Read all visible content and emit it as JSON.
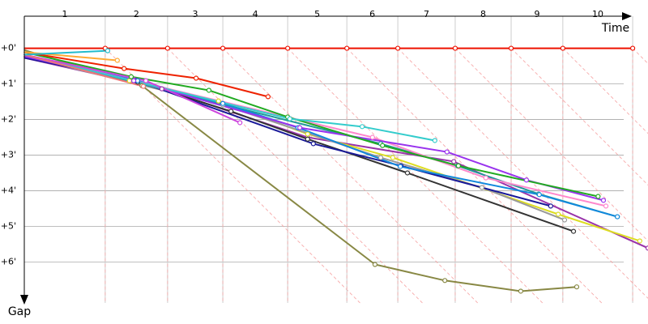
{
  "chart_data": {
    "type": "line",
    "x_label": "Time",
    "y_label": "Gap",
    "laps": [
      "1",
      "2",
      "3",
      "4",
      "5",
      "6",
      "7",
      "8",
      "9",
      "10"
    ],
    "xlim": [
      0,
      17.5
    ],
    "ylim": [
      -0.9,
      7.15
    ],
    "y_inverted": true,
    "grid": true,
    "yticks": [
      {
        "value": 0,
        "label": "+0'"
      },
      {
        "value": 1,
        "label": "+1'"
      },
      {
        "value": 2,
        "label": "+2'"
      },
      {
        "value": 3,
        "label": "+3'"
      },
      {
        "value": 4,
        "label": "+4'"
      },
      {
        "value": 5,
        "label": "+5'"
      },
      {
        "value": 6,
        "label": "+6'"
      }
    ],
    "series": [
      {
        "color": "#ee1100",
        "x": [
          0,
          2.27,
          4.02,
          5.57,
          7.39,
          9.05,
          10.48,
          12.09,
          13.66,
          15.11,
          17.07
        ],
        "y": [
          0,
          0,
          0,
          0,
          0,
          0,
          0,
          0,
          0,
          0,
          0
        ]
      },
      {
        "color": "#888844",
        "x": [
          0,
          3.3,
          9.84,
          11.8,
          13.93,
          15.5
        ],
        "y": [
          0.05,
          1.05,
          6.07,
          6.52,
          6.82,
          6.7
        ]
      },
      {
        "color": "#9933aa",
        "x": [
          0,
          3.86,
          7.95,
          12.05,
          17.5
        ],
        "y": [
          0.27,
          1.14,
          2.5,
          3.18,
          5.61
        ]
      },
      {
        "color": "#dddd22",
        "x": [
          0,
          2.95,
          5.45,
          7.95,
          10.34,
          14.98,
          17.27
        ],
        "y": [
          0.23,
          0.91,
          1.48,
          2.41,
          3.07,
          4.66,
          5.41
        ]
      },
      {
        "color": "#999999",
        "x": [
          0,
          5.57,
          10,
          12.84,
          15.16
        ],
        "y": [
          0.23,
          1.59,
          3.07,
          3.91,
          4.82
        ]
      },
      {
        "color": "#333333",
        "x": [
          0,
          3.18,
          5.8,
          7.95,
          10.75,
          15.41
        ],
        "y": [
          0.23,
          0.95,
          1.77,
          2.55,
          3.5,
          5.14
        ]
      },
      {
        "color": "#1a1a99",
        "x": [
          0,
          3.14,
          8.11,
          10.57,
          14.77
        ],
        "y": [
          0.27,
          0.91,
          2.68,
          3.3,
          4.43
        ]
      },
      {
        "color": "#229999",
        "x": [
          0,
          10,
          12.16,
          14.43,
          16.64
        ],
        "y": [
          0.18,
          2.68,
          3.3,
          4.09,
          4.73
        ]
      },
      {
        "color": "#1188dd",
        "x": [
          0,
          3.18,
          5.57,
          7.68,
          10.55,
          14.45,
          16.64
        ],
        "y": [
          0.18,
          0.91,
          1.55,
          2.23,
          3.32,
          4.11,
          4.73
        ]
      },
      {
        "color": "#ff88cc",
        "x": [
          0,
          9.77,
          12.95,
          16.32
        ],
        "y": [
          0.18,
          2.5,
          3.64,
          4.43
        ]
      },
      {
        "color": "#9933ee",
        "x": [
          0,
          3.07,
          7.73,
          11.86,
          14.09,
          16.25
        ],
        "y": [
          0.23,
          0.91,
          2.23,
          2.91,
          3.7,
          4.27
        ]
      },
      {
        "color": "#22aa22",
        "x": [
          0,
          3,
          5.18,
          7.39,
          10.05,
          12.18,
          16.1
        ],
        "y": [
          0.11,
          0.8,
          1.18,
          1.93,
          2.73,
          3.3,
          4.16
        ]
      },
      {
        "color": "#33cccc",
        "x": [
          0,
          7.45,
          9.48,
          11.52
        ],
        "y": [
          0.18,
          1.98,
          2.2,
          2.59
        ]
      },
      {
        "color": "#cc44dd",
        "x": [
          0,
          3.41,
          6.05
        ],
        "y": [
          0.18,
          0.91,
          2.09
        ]
      },
      {
        "color": "#ee7777",
        "x": [
          0,
          3.34
        ],
        "y": [
          0.18,
          1.07
        ]
      },
      {
        "color": "#ee2200",
        "x": [
          0,
          2.8,
          4.82,
          6.84
        ],
        "y": [
          0.11,
          0.57,
          0.84,
          1.36
        ]
      },
      {
        "color": "#ffaa33",
        "x": [
          0,
          2.61
        ],
        "y": [
          0.11,
          0.34
        ]
      },
      {
        "color": "#22bbcc",
        "x": [
          0,
          2.34
        ],
        "y": [
          0.18,
          0.07
        ]
      }
    ]
  }
}
